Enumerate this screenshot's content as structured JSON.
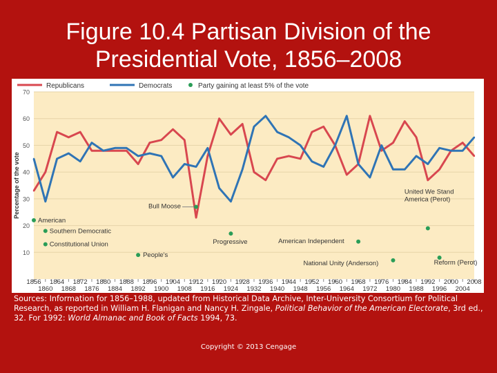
{
  "slide": {
    "title_line1": "Figure 10.4  Partisan Division of the",
    "title_line2": "Presidential Vote, 1856–2008"
  },
  "colors": {
    "republican": "#d8474f",
    "democrat": "#2f74b5",
    "minor_party": "#2a9d57",
    "plot_background": "#fcebc3",
    "slide_background": "#b3120f"
  },
  "chart_data": {
    "type": "line",
    "ylabel": "Percentage of the vote",
    "ylim": [
      0,
      70
    ],
    "yticks": [
      10,
      20,
      30,
      40,
      50,
      60,
      70
    ],
    "xlim": [
      1856,
      2008
    ],
    "xticks_top": [
      "1856",
      "1864",
      "1872",
      "1880",
      "1888",
      "1896",
      "1904",
      "1912",
      "1920",
      "1928",
      "1936",
      "1944",
      "1952",
      "1960",
      "1968",
      "1976",
      "1984",
      "1992",
      "2000",
      "2008"
    ],
    "xticks_bottom": [
      "1860",
      "1868",
      "1876",
      "1884",
      "1892",
      "1900",
      "1908",
      "1916",
      "1924",
      "1932",
      "1940",
      "1948",
      "1956",
      "1964",
      "1972",
      "1980",
      "1988",
      "1996",
      "2004"
    ],
    "legend_position": "top",
    "legend": [
      {
        "label": "Republicans",
        "type": "line",
        "color_key": "republican"
      },
      {
        "label": "Democrats",
        "type": "line",
        "color_key": "democrat"
      },
      {
        "label": "Party gaining at least 5% of the vote",
        "type": "dot",
        "color_key": "minor_party"
      }
    ],
    "x": [
      1856,
      1860,
      1864,
      1868,
      1872,
      1876,
      1880,
      1884,
      1888,
      1892,
      1896,
      1900,
      1904,
      1908,
      1912,
      1916,
      1920,
      1924,
      1928,
      1932,
      1936,
      1940,
      1944,
      1948,
      1952,
      1956,
      1960,
      1964,
      1968,
      1972,
      1976,
      1980,
      1984,
      1988,
      1992,
      1996,
      2000,
      2004,
      2008
    ],
    "series": [
      {
        "name": "Republicans",
        "color_key": "republican",
        "values": [
          33,
          40,
          55,
          53,
          55,
          48,
          48,
          48,
          48,
          43,
          51,
          52,
          56,
          52,
          23,
          46,
          60,
          54,
          58,
          40,
          37,
          45,
          46,
          45,
          55,
          57,
          50,
          39,
          43,
          61,
          48,
          51,
          59,
          53,
          37,
          41,
          48,
          51,
          46
        ]
      },
      {
        "name": "Democrats",
        "color_key": "democrat",
        "values": [
          45,
          29,
          45,
          47,
          44,
          51,
          48,
          49,
          49,
          46,
          47,
          46,
          38,
          43,
          42,
          49,
          34,
          29,
          41,
          57,
          61,
          55,
          53,
          50,
          44,
          42,
          50,
          61,
          43,
          38,
          50,
          41,
          41,
          46,
          43,
          49,
          48,
          48,
          53
        ]
      }
    ],
    "annotations": [
      {
        "label": "American",
        "year": 1856,
        "value": 22
      },
      {
        "label": "Southern Democratic",
        "year": 1860,
        "value": 18
      },
      {
        "label": "Constitutional Union",
        "year": 1860,
        "value": 13
      },
      {
        "label": "People's",
        "year": 1892,
        "value": 9
      },
      {
        "label": "Bull Moose",
        "year": 1912,
        "value": 27
      },
      {
        "label": "Progressive",
        "year": 1924,
        "value": 17
      },
      {
        "label": "American Independent",
        "year": 1968,
        "value": 14
      },
      {
        "label": "National Unity (Anderson)",
        "year": 1980,
        "value": 7
      },
      {
        "label": "United We Stand America (Perot)",
        "year": 1992,
        "value": 19
      },
      {
        "label": "Reform (Perot)",
        "year": 1996,
        "value": 8
      }
    ]
  },
  "footer": {
    "sources_prefix": "Sources: Information for 1856–1988, updated from Historical Data Archive, Inter-University Consortium for Political Research, as reported in William H. Flanigan and Nancy H. Zingale, ",
    "sources_title1": "Political Behavior of the American Electorate",
    "sources_mid": ", 3rd ed., 32. For 1992: ",
    "sources_title2": "World Almanac and Book of Facts",
    "sources_suffix": " 1994, 73.",
    "copyright": "Copyright © 2013 Cengage"
  }
}
